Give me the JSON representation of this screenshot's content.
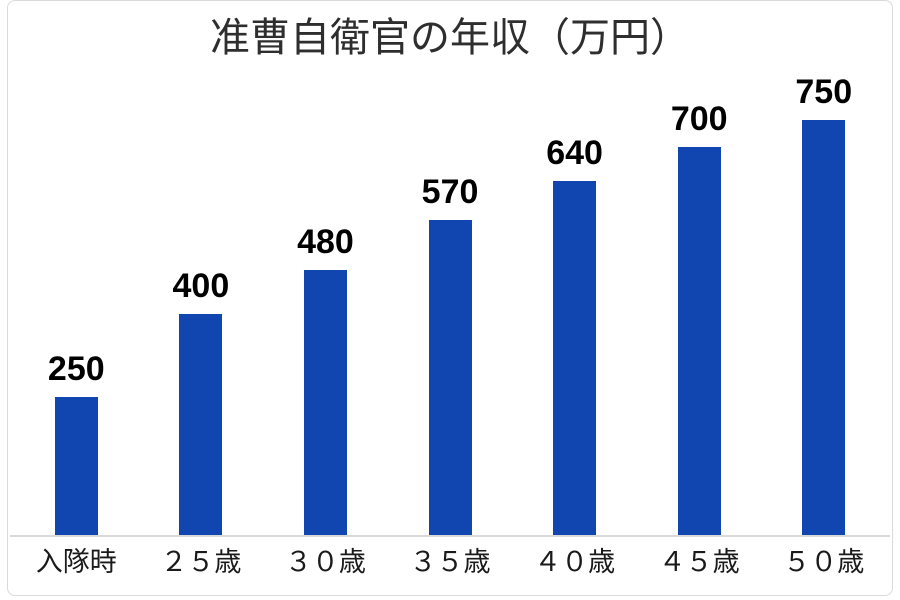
{
  "chart_data": {
    "type": "bar",
    "title": "准曹自衛官の年収（万円）",
    "categories": [
      "入隊時",
      "２５歳",
      "３０歳",
      "３５歳",
      "４０歳",
      "４５歳",
      "５０歳"
    ],
    "values": [
      250,
      400,
      480,
      570,
      640,
      700,
      750
    ],
    "xlabel": "",
    "ylabel": "",
    "ylim": [
      0,
      820
    ],
    "grid": false,
    "legend": false,
    "data_labels": true,
    "bar_color": "#1146b0",
    "axis_line_color": "#d9d9d9",
    "title_color": "#2e2e2e",
    "value_label_color": "#000000",
    "tick_label_color": "#1a1a1a"
  }
}
